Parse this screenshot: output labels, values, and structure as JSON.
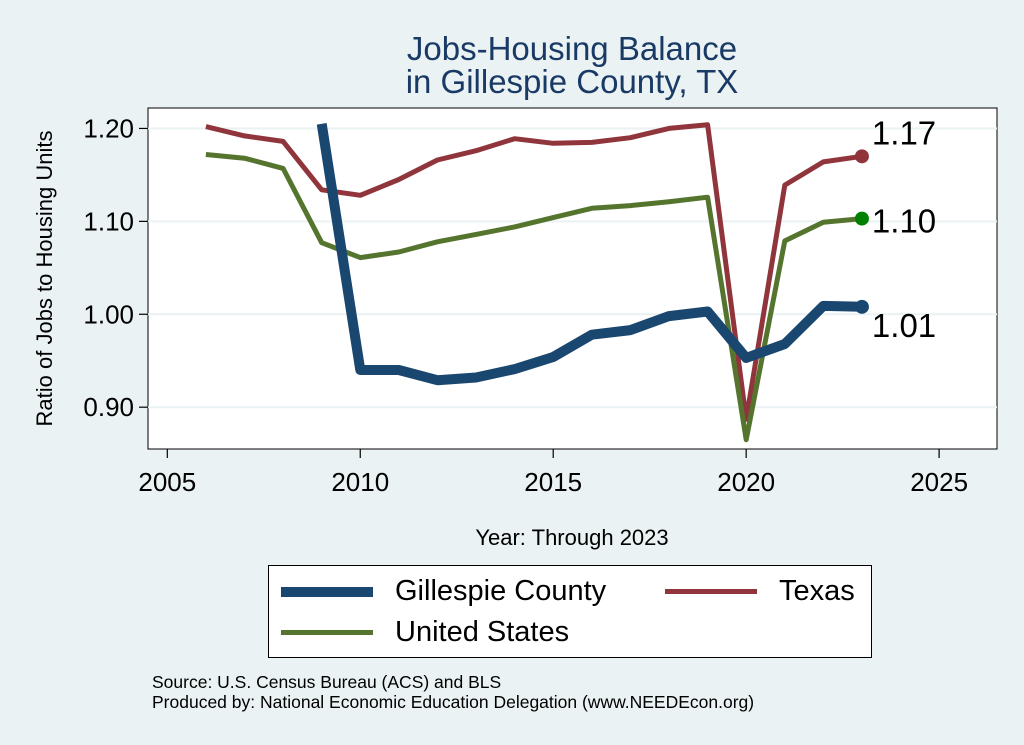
{
  "chart_data": {
    "type": "line",
    "title": [
      "Jobs-Housing Balance",
      "in Gillespie County, TX"
    ],
    "xlabel": "Year: Through 2023",
    "ylabel": "Ratio of Jobs to Housing Units",
    "xlim": [
      2004.5,
      2026.5
    ],
    "ylim": [
      0.855,
      1.222
    ],
    "x_ticks": [
      2005,
      2010,
      2015,
      2020,
      2025
    ],
    "x_tick_labels": [
      "2005",
      "2010",
      "2015",
      "2020",
      "2025"
    ],
    "y_ticks": [
      0.9,
      1.0,
      1.1,
      1.2
    ],
    "y_tick_labels": [
      "0.90",
      "1.00",
      "1.10",
      "1.20"
    ],
    "grid": true,
    "legend_position": "bottom",
    "series": [
      {
        "name": "Gillespie County",
        "color": "#1a476f",
        "x": [
          2009,
          2010,
          2011,
          2012,
          2013,
          2014,
          2015,
          2016,
          2017,
          2018,
          2019,
          2020,
          2021,
          2022,
          2023
        ],
        "values": [
          1.205,
          0.94,
          0.94,
          0.929,
          0.932,
          0.941,
          0.954,
          0.978,
          0.983,
          0.998,
          1.003,
          0.953,
          0.968,
          1.009,
          1.008
        ],
        "end_label": "1.01",
        "end_marker_color": "#1a476f"
      },
      {
        "name": "Texas",
        "color": "#90353b",
        "x": [
          2006,
          2007,
          2008,
          2009,
          2010,
          2011,
          2012,
          2013,
          2014,
          2015,
          2016,
          2017,
          2018,
          2019,
          2020,
          2021,
          2022,
          2023
        ],
        "values": [
          1.202,
          1.192,
          1.186,
          1.134,
          1.128,
          1.145,
          1.166,
          1.176,
          1.189,
          1.184,
          1.185,
          1.19,
          1.2,
          1.204,
          0.887,
          1.139,
          1.164,
          1.17
        ],
        "end_label": "1.17",
        "end_marker_color": "#90353b"
      },
      {
        "name": "United States",
        "color": "#55752f",
        "x": [
          2006,
          2007,
          2008,
          2009,
          2010,
          2011,
          2012,
          2013,
          2014,
          2015,
          2016,
          2017,
          2018,
          2019,
          2020,
          2021,
          2022,
          2023
        ],
        "values": [
          1.172,
          1.168,
          1.157,
          1.077,
          1.061,
          1.067,
          1.078,
          1.086,
          1.094,
          1.104,
          1.114,
          1.117,
          1.121,
          1.126,
          0.865,
          1.079,
          1.099,
          1.103
        ],
        "end_label": "1.10",
        "end_marker_color": "#008000"
      }
    ]
  },
  "footnotes": {
    "source": "Source: U.S. Census Bureau (ACS) and BLS",
    "produced": "Produced by: National Economic Education Delegation (www.NEEDEcon.org)"
  }
}
